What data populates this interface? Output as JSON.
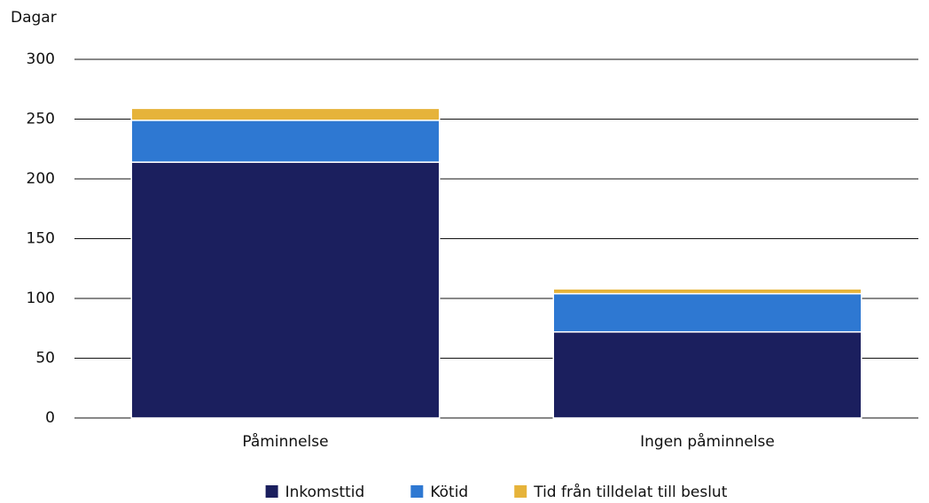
{
  "chart_data": {
    "type": "stacked_bar",
    "y_label": "Dagar",
    "categories": [
      "Påminnelse",
      "Ingen påminnelse"
    ],
    "series": [
      {
        "name": "Inkomsttid",
        "color": "#1b1f5e",
        "values": [
          214,
          72
        ]
      },
      {
        "name": "Kötid",
        "color": "#2e78d2",
        "values": [
          35,
          32
        ]
      },
      {
        "name": "Tid från tilldelat till beslut",
        "color": "#e6b33a",
        "values": [
          10,
          4
        ]
      }
    ],
    "ylim": [
      0,
      300
    ],
    "yticks": [
      0,
      50,
      100,
      150,
      200,
      250,
      300
    ],
    "grid": true,
    "legend": "bottom"
  }
}
